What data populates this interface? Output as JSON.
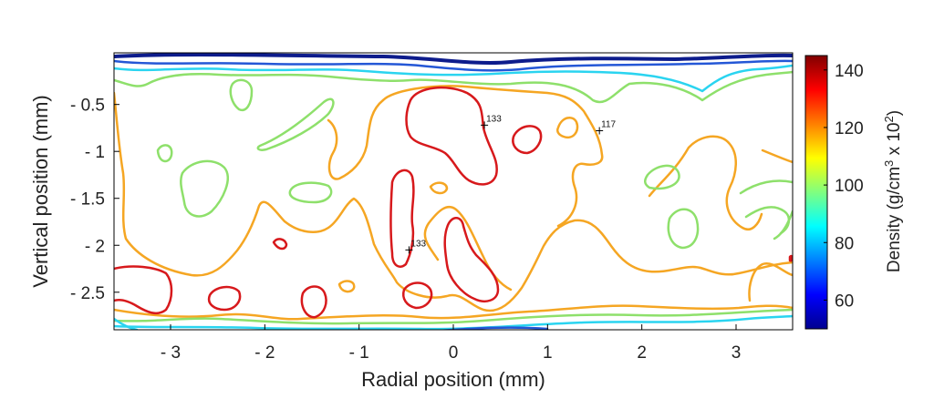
{
  "chart_data": {
    "type": "contour",
    "xlabel": "Radial position (mm)",
    "ylabel": "Vertical position (mm)",
    "xlim": [
      -3.6,
      3.6
    ],
    "ylim": [
      -2.9,
      0.05
    ],
    "x_ticks": [
      -3,
      -2,
      -1,
      0,
      1,
      2,
      3
    ],
    "x_tick_labels": [
      "- 3",
      "- 2",
      "- 1",
      "0",
      "1",
      "2",
      "3"
    ],
    "y_ticks": [
      -0.5,
      -1,
      -1.5,
      -2,
      -2.5
    ],
    "y_tick_labels": [
      "- 0.5",
      "- 1",
      "- 1.5",
      "- 2",
      "- 2.5"
    ],
    "colorbar": {
      "label": "Density",
      "units": "(g/cm",
      "units_sup1": "3",
      "units_mid": " x 10",
      "units_sup2": "2",
      "units_end": ")",
      "ticks": [
        60,
        80,
        100,
        120,
        140
      ],
      "range": [
        50,
        145
      ],
      "colormap": "jet"
    },
    "annotations": [
      {
        "text": "133",
        "x": 0.33,
        "y": -0.72
      },
      {
        "text": "117",
        "x": 1.55,
        "y": -0.78
      },
      {
        "text": "133",
        "x": -0.47,
        "y": -2.05
      }
    ],
    "contour_levels": [
      {
        "level": 133,
        "color": "#d7191c"
      },
      {
        "level": 117,
        "color": "#f5a623"
      },
      {
        "level": 100,
        "color": "#8ee06b"
      },
      {
        "level": 85,
        "color": "#2ad4f0"
      },
      {
        "level": 70,
        "color": "#2457d6"
      },
      {
        "level": 55,
        "color": "#0d1c8c"
      }
    ]
  }
}
